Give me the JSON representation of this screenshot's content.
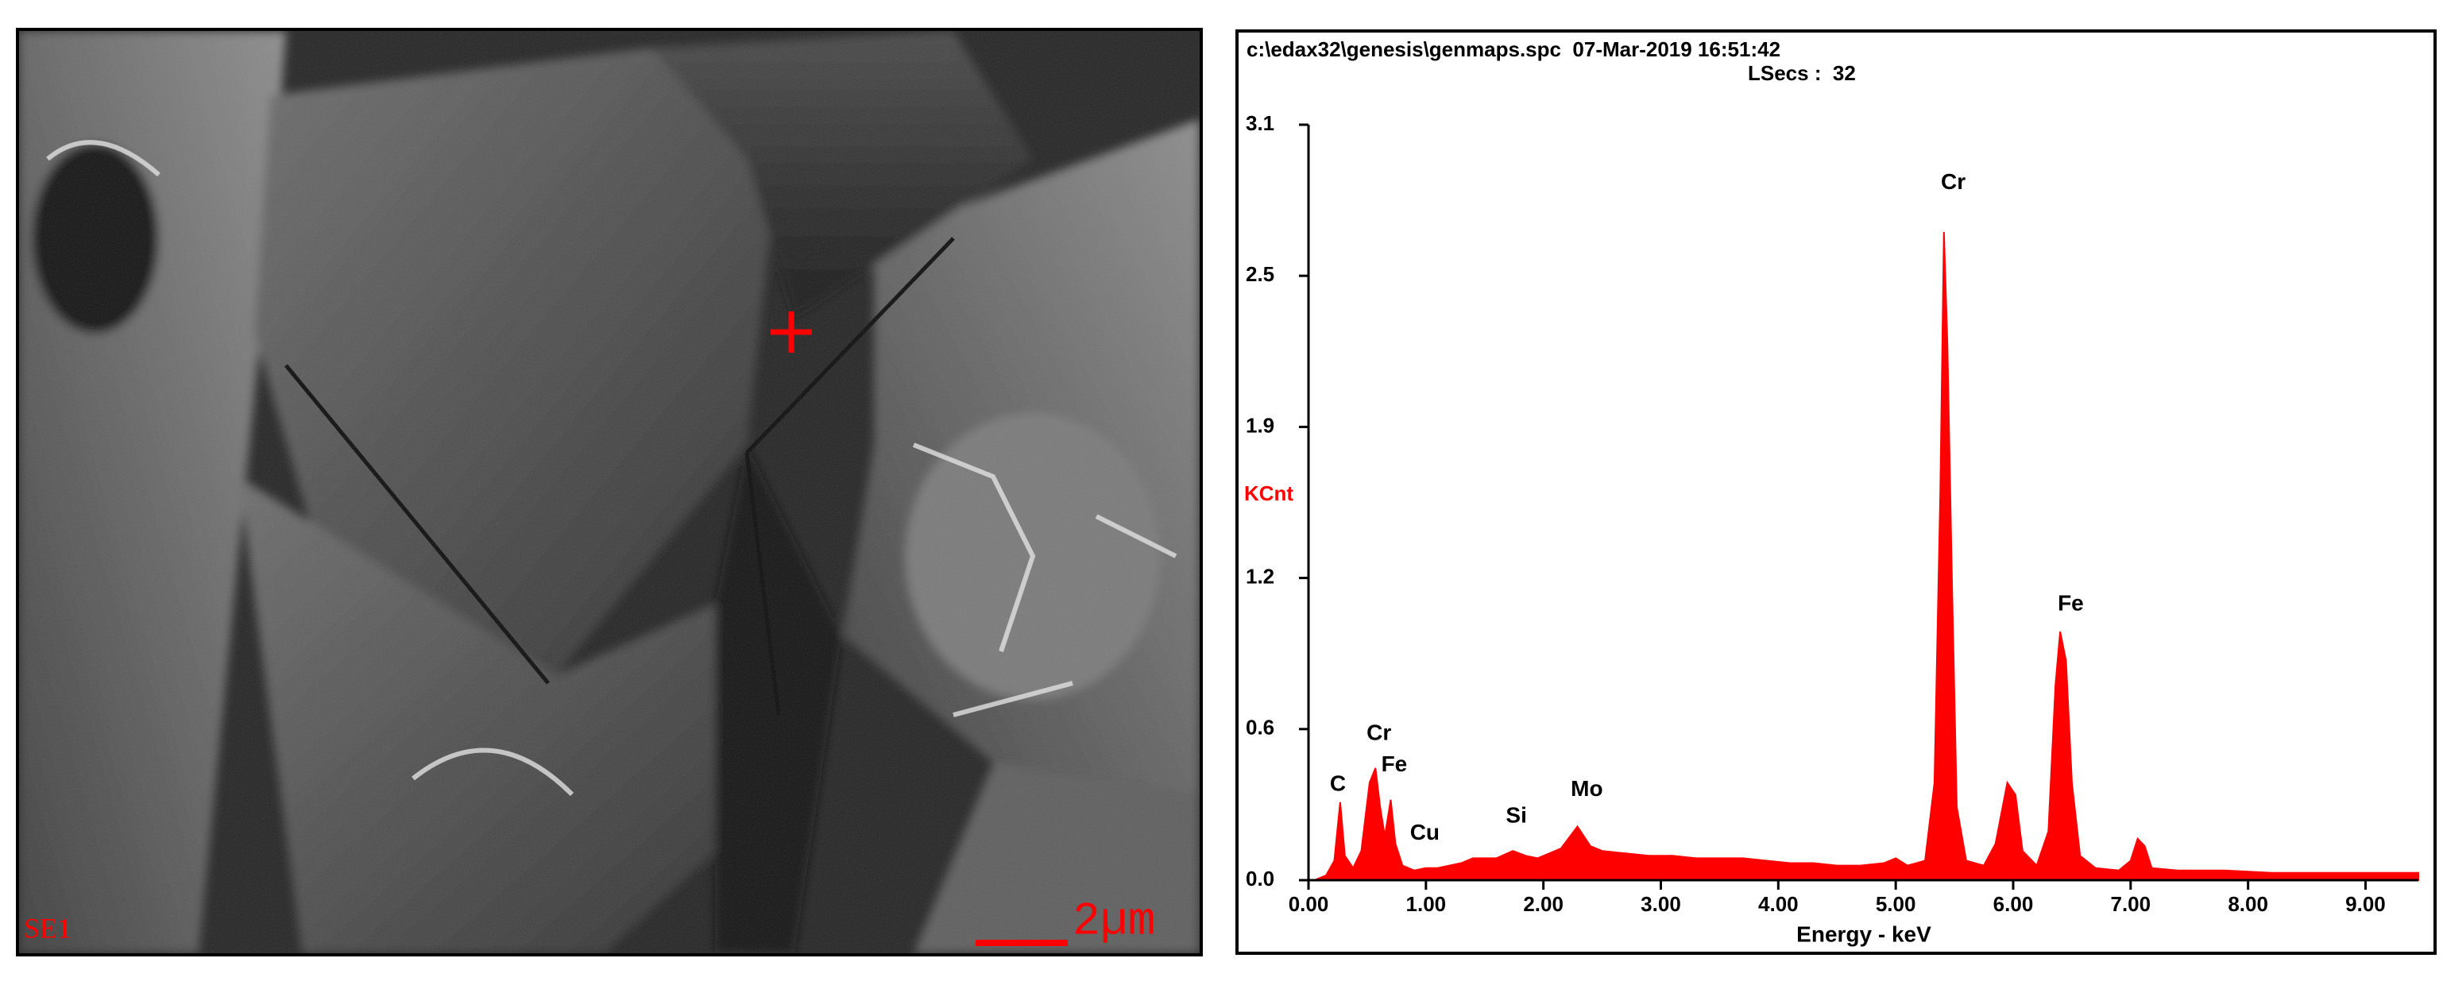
{
  "sem_image": {
    "detector": "SE1",
    "scale_label": "2µm"
  },
  "chart_data": {
    "type": "area",
    "header": "c:\\edax32\\genesis\\genmaps.spc  07-Mar-2019 16:51:42",
    "subheader": "LSecs :  32",
    "y_label": "KCnt",
    "x_label": "Energy - keV",
    "color": "#ff0000",
    "xlim": [
      0,
      9.45
    ],
    "ylim": [
      0,
      3.1
    ],
    "xticks": [
      {
        "value": 0,
        "label": "0.00"
      },
      {
        "value": 1,
        "label": "1.00"
      },
      {
        "value": 2,
        "label": "2.00"
      },
      {
        "value": 3,
        "label": "3.00"
      },
      {
        "value": 4,
        "label": "4.00"
      },
      {
        "value": 5,
        "label": "5.00"
      },
      {
        "value": 6,
        "label": "6.00"
      },
      {
        "value": 7,
        "label": "7.00"
      },
      {
        "value": 8,
        "label": "8.00"
      },
      {
        "value": 9,
        "label": "9.00"
      }
    ],
    "yticks": [
      {
        "value": 0,
        "label": "0.0"
      },
      {
        "value": 0.62,
        "label": "0.6"
      },
      {
        "value": 1.24,
        "label": "1.2"
      },
      {
        "value": 1.86,
        "label": "1.9"
      },
      {
        "value": 2.48,
        "label": "2.5"
      },
      3.1
    ],
    "x": [
      0.05,
      0.15,
      0.22,
      0.27,
      0.31,
      0.38,
      0.45,
      0.52,
      0.57,
      0.61,
      0.65,
      0.7,
      0.74,
      0.8,
      0.9,
      1.0,
      1.1,
      1.2,
      1.3,
      1.4,
      1.5,
      1.6,
      1.74,
      1.85,
      1.95,
      2.05,
      2.15,
      2.29,
      2.4,
      2.5,
      2.7,
      2.9,
      3.1,
      3.3,
      3.5,
      3.7,
      3.9,
      4.1,
      4.3,
      4.5,
      4.7,
      4.9,
      5.0,
      5.1,
      5.25,
      5.33,
      5.38,
      5.41,
      5.44,
      5.48,
      5.52,
      5.6,
      5.75,
      5.85,
      5.95,
      6.02,
      6.08,
      6.2,
      6.3,
      6.36,
      6.4,
      6.45,
      6.5,
      6.57,
      6.7,
      6.9,
      7.0,
      7.06,
      7.12,
      7.18,
      7.4,
      7.8,
      8.2,
      8.6,
      9.0,
      9.45
    ],
    "series": [
      {
        "name": "KCnt",
        "values": [
          0.0,
          0.02,
          0.08,
          0.32,
          0.1,
          0.05,
          0.12,
          0.4,
          0.46,
          0.3,
          0.18,
          0.33,
          0.15,
          0.06,
          0.04,
          0.05,
          0.05,
          0.06,
          0.07,
          0.09,
          0.09,
          0.09,
          0.12,
          0.1,
          0.09,
          0.11,
          0.13,
          0.22,
          0.14,
          0.12,
          0.11,
          0.1,
          0.1,
          0.09,
          0.09,
          0.09,
          0.08,
          0.07,
          0.07,
          0.06,
          0.06,
          0.07,
          0.09,
          0.06,
          0.08,
          0.4,
          1.6,
          2.66,
          2.2,
          1.2,
          0.3,
          0.08,
          0.06,
          0.15,
          0.4,
          0.35,
          0.12,
          0.06,
          0.2,
          0.8,
          1.02,
          0.9,
          0.4,
          0.1,
          0.05,
          0.04,
          0.08,
          0.17,
          0.14,
          0.05,
          0.04,
          0.04,
          0.03,
          0.03,
          0.03,
          0.03
        ]
      }
    ],
    "annotations": [
      {
        "text": "C",
        "x": 0.25,
        "y": 0.39
      },
      {
        "text": "Cr",
        "x": 0.6,
        "y": 0.6
      },
      {
        "text": "Fe",
        "x": 0.73,
        "y": 0.47
      },
      {
        "text": "Cu",
        "x": 0.99,
        "y": 0.19
      },
      {
        "text": "Si",
        "x": 1.77,
        "y": 0.26
      },
      {
        "text": "Mo",
        "x": 2.37,
        "y": 0.37
      },
      {
        "text": "Cr",
        "x": 5.49,
        "y": 2.86
      },
      {
        "text": "Fe",
        "x": 6.49,
        "y": 1.13
      }
    ]
  }
}
